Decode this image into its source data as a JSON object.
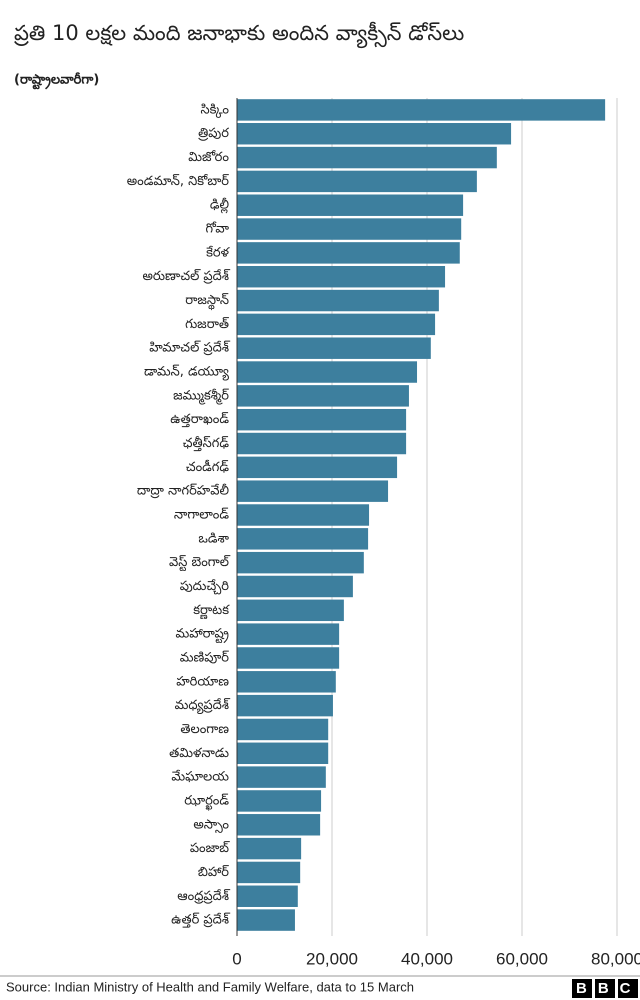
{
  "chart_data": {
    "type": "hbar",
    "title": "ప్రతి 10 లక్షల మంది జనాభాకు అందిన వ్యాక్సీన్ డోస్‌లు",
    "subtitle": "(రాష్ట్రాలవారీగా)",
    "categories": [
      "సిక్కిం",
      "త్రిపుర",
      "మిజోరం",
      "అండమాన్, నికోబార్",
      "ఢిల్లీ",
      "గోవా",
      "కేరళ",
      "అరుణాచల్ ప్రదేశ్",
      "రాజస్థాన్",
      "గుజరాత్",
      "హిమాచల్ ప్రదేశ్",
      "డామన్, డయ్యూ",
      "జమ్ముకశ్మీర్",
      "ఉత్తరాఖండ్",
      "ఛత్తీస్‌గఢ్",
      "చండీగఢ్",
      "దాద్రా నాగర్‌హవేలీ",
      "నాగాలాండ్",
      "ఒడిశా",
      "వెస్ట్ బెంగాల్",
      "పుదుచ్చేరి",
      "కర్ణాటక",
      "మహారాష్ట్ర",
      "మణిపూర్",
      "హరియాణ",
      "మధ్యప్రదేశ్",
      "తెలంగాణ",
      "తమిళనాడు",
      "మేఘాలయ",
      "ఝార్ఖండ్",
      "అస్సాం",
      "పంజాబ్",
      "బిహార్",
      "ఆంధ్రప్రదేశ్",
      "ఉత్తర్ ప్రదేశ్"
    ],
    "values": [
      77500,
      57700,
      54700,
      50500,
      47600,
      47200,
      46900,
      43800,
      42500,
      41700,
      40800,
      37900,
      36200,
      35600,
      35600,
      33700,
      31800,
      27800,
      27600,
      26700,
      24400,
      22500,
      21500,
      21500,
      20800,
      20200,
      19200,
      19200,
      18700,
      17700,
      17500,
      13500,
      13300,
      12800,
      12200
    ],
    "color": "#3d7f9e",
    "xlim": [
      0,
      80000
    ],
    "xticks": [
      0,
      {
        "value": 20000,
        "label": "20,000"
      },
      {
        "value": 40000,
        "label": "40,000"
      },
      {
        "value": 60000,
        "label": "60,000"
      },
      {
        "value": 80000,
        "label": "80,000"
      }
    ],
    "grid": true,
    "source": "Source: Indian Ministry of Health and Family Welfare, data to 15 March",
    "logo": "BBC"
  }
}
